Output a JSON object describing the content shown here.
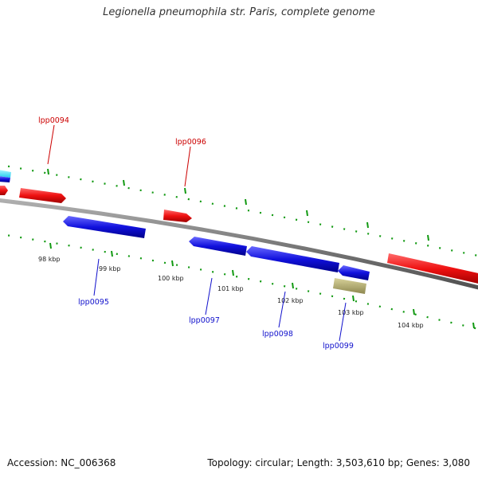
{
  "title": "Legionella pneumophila str. Paris, complete genome",
  "footer": {
    "accession": "Accession: NC_006368",
    "stats": "Topology: circular; Length: 3,503,610 bp; Genes: 3,080"
  },
  "colors": {
    "forward_gene": "#ee1111",
    "reverse_gene": "#1111dd",
    "other_reverse": "#22ccee",
    "rna_feature": "#b8b070",
    "backbone": "#808080",
    "tick_mark": "#119911",
    "forward_label": "#cc0000",
    "reverse_label": "#1111cc"
  },
  "tick_labels": [
    "98 kbp",
    "99 kbp",
    "100 kbp",
    "101 kbp",
    "102 kbp",
    "103 kbp",
    "104 kbp"
  ],
  "gene_labels": [
    {
      "name": "lpp0094",
      "strand": "forward"
    },
    {
      "name": "lpp0096",
      "strand": "forward"
    },
    {
      "name": "lpp0095",
      "strand": "reverse"
    },
    {
      "name": "lpp0097",
      "strand": "reverse"
    },
    {
      "name": "lpp0098",
      "strand": "reverse"
    },
    {
      "name": "lpp0099",
      "strand": "reverse"
    }
  ]
}
